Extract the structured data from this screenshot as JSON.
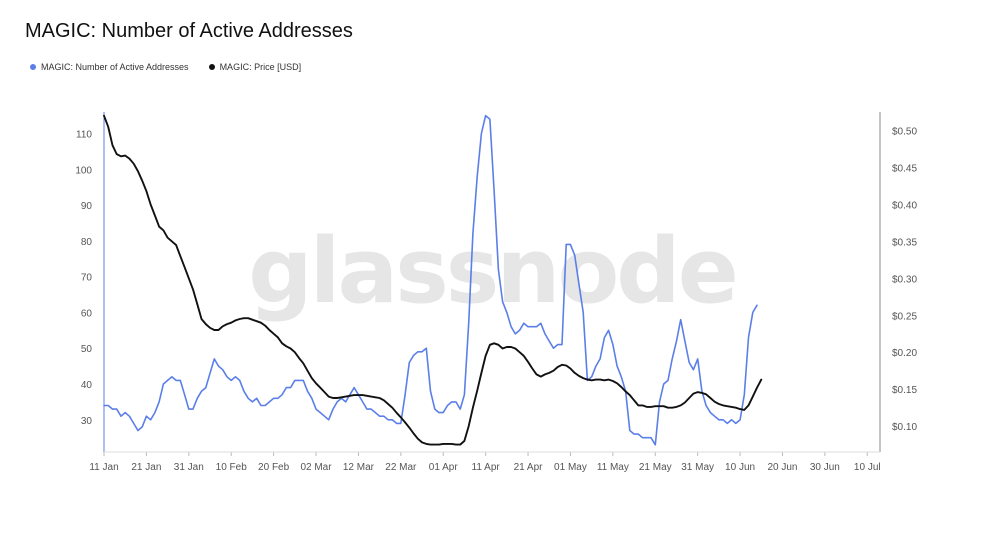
{
  "title": "MAGIC: Number of Active Addresses",
  "watermark": "glassnode",
  "legend": [
    {
      "label": "MAGIC: Number of Active Addresses",
      "color": "#5b7fe8"
    },
    {
      "label": "MAGIC: Price [USD]",
      "color": "#111111"
    }
  ],
  "chart_data": {
    "type": "line",
    "x_tick_labels": [
      "11 Jan",
      "21 Jan",
      "31 Jan",
      "10 Feb",
      "20 Feb",
      "02 Mar",
      "12 Mar",
      "22 Mar",
      "01 Apr",
      "11 Apr",
      "21 Apr",
      "01 May",
      "11 May",
      "21 May",
      "31 May",
      "10 Jun",
      "20 Jun",
      "30 Jun",
      "10 Jul"
    ],
    "y_left": {
      "ticks": [
        30,
        40,
        50,
        60,
        70,
        80,
        90,
        100,
        110
      ],
      "range": [
        21,
        116
      ]
    },
    "y_right": {
      "ticks": [
        "$0.10",
        "$0.15",
        "$0.20",
        "$0.25",
        "$0.30",
        "$0.35",
        "$0.40",
        "$0.45",
        "$0.50"
      ],
      "tick_values": [
        0.1,
        0.15,
        0.2,
        0.25,
        0.3,
        0.35,
        0.4,
        0.45,
        0.5
      ],
      "range": [
        0.065,
        0.525
      ]
    },
    "x_day_range": [
      0,
      183
    ],
    "series": [
      {
        "name": "MAGIC: Number of Active Addresses",
        "axis": "left",
        "color": "#5b7fe8",
        "points": [
          [
            0,
            34
          ],
          [
            1,
            34
          ],
          [
            2,
            33
          ],
          [
            3,
            33
          ],
          [
            4,
            31
          ],
          [
            5,
            32
          ],
          [
            6,
            31
          ],
          [
            7,
            29
          ],
          [
            8,
            27
          ],
          [
            9,
            28
          ],
          [
            10,
            31
          ],
          [
            11,
            30
          ],
          [
            12,
            32
          ],
          [
            13,
            35
          ],
          [
            14,
            40
          ],
          [
            15,
            41
          ],
          [
            16,
            42
          ],
          [
            17,
            41
          ],
          [
            18,
            41
          ],
          [
            19,
            37
          ],
          [
            20,
            33
          ],
          [
            21,
            33
          ],
          [
            22,
            36
          ],
          [
            23,
            38
          ],
          [
            24,
            39
          ],
          [
            25,
            43
          ],
          [
            26,
            47
          ],
          [
            27,
            45
          ],
          [
            28,
            44
          ],
          [
            29,
            42
          ],
          [
            30,
            41
          ],
          [
            31,
            42
          ],
          [
            32,
            41
          ],
          [
            33,
            38
          ],
          [
            34,
            36
          ],
          [
            35,
            35
          ],
          [
            36,
            36
          ],
          [
            37,
            34
          ],
          [
            38,
            34
          ],
          [
            39,
            35
          ],
          [
            40,
            36
          ],
          [
            41,
            36
          ],
          [
            42,
            37
          ],
          [
            43,
            39
          ],
          [
            44,
            39
          ],
          [
            45,
            41
          ],
          [
            46,
            41
          ],
          [
            47,
            41
          ],
          [
            48,
            38
          ],
          [
            49,
            36
          ],
          [
            50,
            33
          ],
          [
            51,
            32
          ],
          [
            52,
            31
          ],
          [
            53,
            30
          ],
          [
            54,
            33
          ],
          [
            55,
            35
          ],
          [
            56,
            36
          ],
          [
            57,
            35
          ],
          [
            58,
            37
          ],
          [
            59,
            39
          ],
          [
            60,
            37
          ],
          [
            61,
            35
          ],
          [
            62,
            33
          ],
          [
            63,
            33
          ],
          [
            64,
            32
          ],
          [
            65,
            31
          ],
          [
            66,
            31
          ],
          [
            67,
            30
          ],
          [
            68,
            30
          ],
          [
            69,
            29
          ],
          [
            70,
            29
          ],
          [
            71,
            37
          ],
          [
            72,
            46
          ],
          [
            73,
            48
          ],
          [
            74,
            49
          ],
          [
            75,
            49
          ],
          [
            76,
            50
          ],
          [
            77,
            38
          ],
          [
            78,
            33
          ],
          [
            79,
            32
          ],
          [
            80,
            32
          ],
          [
            81,
            34
          ],
          [
            82,
            35
          ],
          [
            83,
            35
          ],
          [
            84,
            33
          ],
          [
            85,
            37
          ],
          [
            86,
            57
          ],
          [
            87,
            82
          ],
          [
            88,
            98
          ],
          [
            89,
            110
          ],
          [
            90,
            115
          ],
          [
            91,
            114
          ],
          [
            92,
            94
          ],
          [
            93,
            72
          ],
          [
            94,
            63
          ],
          [
            95,
            60
          ],
          [
            96,
            56
          ],
          [
            97,
            54
          ],
          [
            98,
            55
          ],
          [
            99,
            57
          ],
          [
            100,
            56
          ],
          [
            101,
            56
          ],
          [
            102,
            56
          ],
          [
            103,
            57
          ],
          [
            104,
            54
          ],
          [
            105,
            52
          ],
          [
            106,
            50
          ],
          [
            107,
            51
          ],
          [
            108,
            51
          ],
          [
            109,
            79
          ],
          [
            110,
            79
          ],
          [
            111,
            76
          ],
          [
            112,
            68
          ],
          [
            113,
            60
          ],
          [
            114,
            41
          ],
          [
            115,
            42
          ],
          [
            116,
            45
          ],
          [
            117,
            47
          ],
          [
            118,
            53
          ],
          [
            119,
            55
          ],
          [
            120,
            51
          ],
          [
            121,
            45
          ],
          [
            122,
            42
          ],
          [
            123,
            38
          ],
          [
            124,
            27
          ],
          [
            125,
            26
          ],
          [
            126,
            26
          ],
          [
            127,
            25
          ],
          [
            128,
            25
          ],
          [
            129,
            25
          ],
          [
            130,
            23
          ],
          [
            131,
            35
          ],
          [
            132,
            40
          ],
          [
            133,
            41
          ],
          [
            134,
            47
          ],
          [
            135,
            52
          ],
          [
            136,
            58
          ],
          [
            137,
            52
          ],
          [
            138,
            46
          ],
          [
            139,
            44
          ],
          [
            140,
            47
          ],
          [
            141,
            38
          ],
          [
            142,
            34
          ],
          [
            143,
            32
          ],
          [
            144,
            31
          ],
          [
            145,
            30
          ],
          [
            146,
            30
          ],
          [
            147,
            29
          ],
          [
            148,
            30
          ],
          [
            149,
            29
          ],
          [
            150,
            30
          ],
          [
            151,
            37
          ],
          [
            152,
            53
          ],
          [
            153,
            60
          ],
          [
            154,
            62
          ]
        ]
      },
      {
        "name": "MAGIC: Price [USD]",
        "axis": "right",
        "color": "#111111",
        "points": [
          [
            0,
            0.52
          ],
          [
            1,
            0.505
          ],
          [
            2,
            0.48
          ],
          [
            3,
            0.468
          ],
          [
            4,
            0.465
          ],
          [
            5,
            0.466
          ],
          [
            6,
            0.462
          ],
          [
            7,
            0.455
          ],
          [
            8,
            0.445
          ],
          [
            9,
            0.432
          ],
          [
            10,
            0.418
          ],
          [
            11,
            0.4
          ],
          [
            12,
            0.385
          ],
          [
            13,
            0.37
          ],
          [
            14,
            0.365
          ],
          [
            15,
            0.355
          ],
          [
            16,
            0.35
          ],
          [
            17,
            0.345
          ],
          [
            18,
            0.33
          ],
          [
            19,
            0.315
          ],
          [
            20,
            0.3
          ],
          [
            21,
            0.285
          ],
          [
            22,
            0.265
          ],
          [
            23,
            0.245
          ],
          [
            24,
            0.238
          ],
          [
            25,
            0.233
          ],
          [
            26,
            0.23
          ],
          [
            27,
            0.23
          ],
          [
            28,
            0.235
          ],
          [
            29,
            0.238
          ],
          [
            30,
            0.24
          ],
          [
            31,
            0.243
          ],
          [
            32,
            0.245
          ],
          [
            33,
            0.246
          ],
          [
            34,
            0.246
          ],
          [
            35,
            0.244
          ],
          [
            36,
            0.242
          ],
          [
            37,
            0.24
          ],
          [
            38,
            0.236
          ],
          [
            39,
            0.23
          ],
          [
            40,
            0.225
          ],
          [
            41,
            0.22
          ],
          [
            42,
            0.212
          ],
          [
            43,
            0.208
          ],
          [
            44,
            0.205
          ],
          [
            45,
            0.2
          ],
          [
            46,
            0.192
          ],
          [
            47,
            0.185
          ],
          [
            48,
            0.175
          ],
          [
            49,
            0.165
          ],
          [
            50,
            0.158
          ],
          [
            51,
            0.152
          ],
          [
            52,
            0.146
          ],
          [
            53,
            0.14
          ],
          [
            54,
            0.138
          ],
          [
            55,
            0.138
          ],
          [
            56,
            0.139
          ],
          [
            57,
            0.14
          ],
          [
            58,
            0.141
          ],
          [
            59,
            0.142
          ],
          [
            60,
            0.142
          ],
          [
            61,
            0.142
          ],
          [
            62,
            0.141
          ],
          [
            63,
            0.14
          ],
          [
            64,
            0.139
          ],
          [
            65,
            0.138
          ],
          [
            66,
            0.135
          ],
          [
            67,
            0.13
          ],
          [
            68,
            0.125
          ],
          [
            69,
            0.118
          ],
          [
            70,
            0.112
          ],
          [
            71,
            0.105
          ],
          [
            72,
            0.098
          ],
          [
            73,
            0.09
          ],
          [
            74,
            0.083
          ],
          [
            75,
            0.078
          ],
          [
            76,
            0.076
          ],
          [
            77,
            0.075
          ],
          [
            78,
            0.075
          ],
          [
            79,
            0.075
          ],
          [
            80,
            0.076
          ],
          [
            81,
            0.076
          ],
          [
            82,
            0.076
          ],
          [
            83,
            0.075
          ],
          [
            84,
            0.075
          ],
          [
            85,
            0.08
          ],
          [
            86,
            0.1
          ],
          [
            87,
            0.125
          ],
          [
            88,
            0.148
          ],
          [
            89,
            0.172
          ],
          [
            90,
            0.195
          ],
          [
            91,
            0.21
          ],
          [
            92,
            0.212
          ],
          [
            93,
            0.21
          ],
          [
            94,
            0.205
          ],
          [
            95,
            0.207
          ],
          [
            96,
            0.207
          ],
          [
            97,
            0.205
          ],
          [
            98,
            0.2
          ],
          [
            99,
            0.195
          ],
          [
            100,
            0.187
          ],
          [
            101,
            0.178
          ],
          [
            102,
            0.17
          ],
          [
            103,
            0.167
          ],
          [
            104,
            0.17
          ],
          [
            105,
            0.172
          ],
          [
            106,
            0.175
          ],
          [
            107,
            0.18
          ],
          [
            108,
            0.183
          ],
          [
            109,
            0.182
          ],
          [
            110,
            0.178
          ],
          [
            111,
            0.172
          ],
          [
            112,
            0.168
          ],
          [
            113,
            0.165
          ],
          [
            114,
            0.163
          ],
          [
            115,
            0.162
          ],
          [
            116,
            0.163
          ],
          [
            117,
            0.163
          ],
          [
            118,
            0.162
          ],
          [
            119,
            0.163
          ],
          [
            120,
            0.161
          ],
          [
            121,
            0.158
          ],
          [
            122,
            0.153
          ],
          [
            123,
            0.147
          ],
          [
            124,
            0.142
          ],
          [
            125,
            0.135
          ],
          [
            126,
            0.128
          ],
          [
            127,
            0.128
          ],
          [
            128,
            0.126
          ],
          [
            129,
            0.126
          ],
          [
            130,
            0.127
          ],
          [
            131,
            0.127
          ],
          [
            132,
            0.127
          ],
          [
            133,
            0.125
          ],
          [
            134,
            0.125
          ],
          [
            135,
            0.126
          ],
          [
            136,
            0.128
          ],
          [
            137,
            0.132
          ],
          [
            138,
            0.138
          ],
          [
            139,
            0.144
          ],
          [
            140,
            0.146
          ],
          [
            141,
            0.145
          ],
          [
            142,
            0.143
          ],
          [
            143,
            0.138
          ],
          [
            144,
            0.133
          ],
          [
            145,
            0.13
          ],
          [
            146,
            0.128
          ],
          [
            147,
            0.127
          ],
          [
            148,
            0.126
          ],
          [
            149,
            0.125
          ],
          [
            150,
            0.123
          ],
          [
            151,
            0.122
          ],
          [
            152,
            0.128
          ],
          [
            153,
            0.14
          ],
          [
            154,
            0.152
          ],
          [
            155,
            0.163
          ]
        ]
      }
    ]
  }
}
